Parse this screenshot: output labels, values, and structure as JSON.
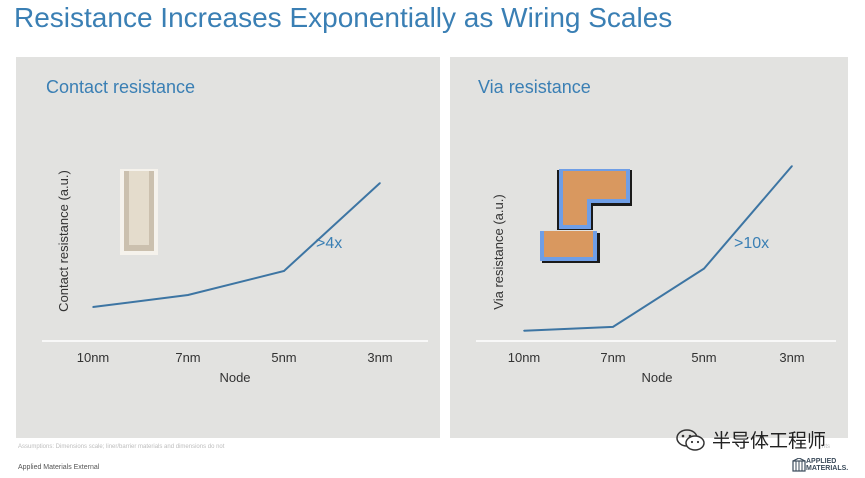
{
  "slide": {
    "title": "Resistance Increases Exponentially as Wiring Scales",
    "footnote": "Assumptions: Dimensions scale; liner/barrier materials and dimensions do not",
    "footnote_right": "nts",
    "classification": "Applied Materials External",
    "brand_name": "APPLIED MATERIALS.",
    "watermark_text": "半导体工程师",
    "title_color": "#3a7fb4",
    "panel_bg": "#e2e2e0",
    "line_color": "#3d75a3"
  },
  "icons": {
    "contact": "contact-cross-section-icon",
    "via": "via-cross-section-icon",
    "brand": "applied-materials-logo-icon",
    "watermark": "wechat-icon"
  },
  "chart_data": [
    {
      "type": "line",
      "title": "Contact resistance",
      "xlabel": "Node",
      "ylabel": "Contact resistance (a.u.)",
      "categories": [
        "10nm",
        "7nm",
        "5nm",
        "3nm"
      ],
      "values": [
        1.0,
        1.6,
        2.8,
        7.2
      ],
      "ylim": [
        0,
        9
      ],
      "y_axis_ticks": false,
      "annotation": ">4x",
      "grid": false,
      "legend": "none"
    },
    {
      "type": "line",
      "title": "Via resistance",
      "xlabel": "Node",
      "ylabel": "Via resistance (a.u.)",
      "categories": [
        "10nm",
        "7nm",
        "5nm",
        "3nm"
      ],
      "values": [
        0.5,
        0.8,
        5.4,
        13.5
      ],
      "ylim": [
        0,
        15
      ],
      "y_axis_ticks": false,
      "annotation": ">10x",
      "grid": false,
      "legend": "none"
    }
  ]
}
